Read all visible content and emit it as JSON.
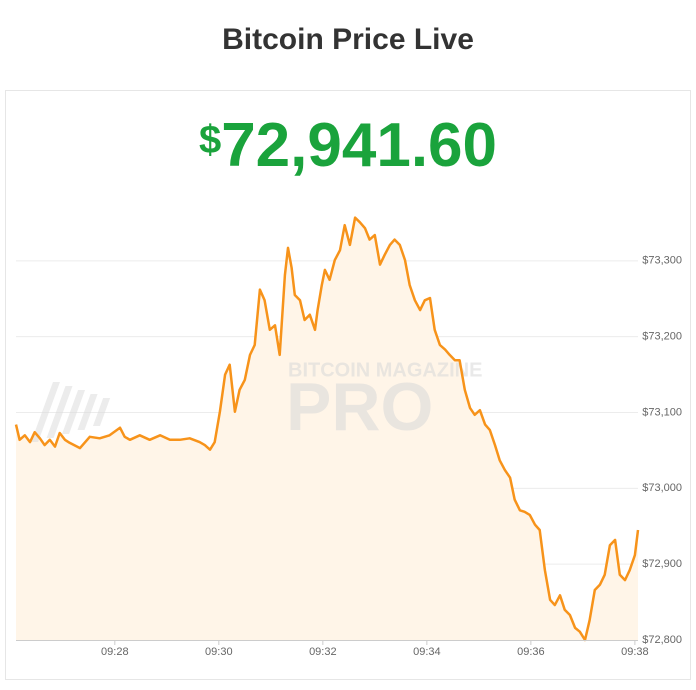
{
  "header": {
    "title": "Bitcoin Price Live"
  },
  "price": {
    "symbol": "$",
    "amount": "72,941.60"
  },
  "watermark": {
    "top": "BITCOIN MAGAZINE",
    "bottom": "PRO"
  },
  "chart_data": {
    "type": "line",
    "color": "#f7931a",
    "fill": "#fff5e8",
    "grid": true,
    "xlim": [
      566.1,
      578.06
    ],
    "ylim": [
      72800,
      73400
    ],
    "xticks": [
      {
        "value": 568,
        "label": "09:28"
      },
      {
        "value": 570,
        "label": "09:30"
      },
      {
        "value": 572,
        "label": "09:32"
      },
      {
        "value": 574,
        "label": "09:34"
      },
      {
        "value": 576,
        "label": "09:36"
      },
      {
        "value": 578,
        "label": "09:38"
      }
    ],
    "yticks": [
      {
        "value": 72800,
        "label": "$72,800"
      },
      {
        "value": 72900,
        "label": "$72,900"
      },
      {
        "value": 73000,
        "label": "$73,000"
      },
      {
        "value": 73100,
        "label": "$73,100"
      },
      {
        "value": 73200,
        "label": "$73,200"
      },
      {
        "value": 73300,
        "label": "$73,300"
      }
    ],
    "series": [
      {
        "name": "Price",
        "x": [
          566.1,
          566.17,
          566.27,
          566.37,
          566.46,
          566.56,
          566.65,
          566.75,
          566.85,
          566.94,
          567.04,
          567.13,
          567.33,
          567.52,
          567.71,
          567.9,
          568.1,
          568.19,
          568.29,
          568.48,
          568.67,
          568.87,
          569.06,
          569.25,
          569.44,
          569.63,
          569.73,
          569.83,
          569.92,
          570.02,
          570.12,
          570.21,
          570.31,
          570.4,
          570.5,
          570.6,
          570.69,
          570.79,
          570.88,
          570.98,
          571.08,
          571.17,
          571.27,
          571.33,
          571.4,
          571.46,
          571.56,
          571.65,
          571.75,
          571.85,
          571.9,
          571.98,
          572.04,
          572.13,
          572.23,
          572.33,
          572.42,
          572.52,
          572.62,
          572.71,
          572.81,
          572.9,
          573.0,
          573.1,
          573.19,
          573.29,
          573.38,
          573.48,
          573.58,
          573.67,
          573.77,
          573.87,
          573.96,
          574.06,
          574.15,
          574.25,
          574.35,
          574.44,
          574.54,
          574.63,
          574.73,
          574.83,
          574.92,
          575.02,
          575.12,
          575.21,
          575.31,
          575.4,
          575.5,
          575.6,
          575.69,
          575.79,
          575.88,
          575.98,
          576.08,
          576.17,
          576.27,
          576.37,
          576.46,
          576.56,
          576.65,
          576.75,
          576.85,
          576.94,
          577.04,
          577.13,
          577.23,
          577.33,
          577.42,
          577.52,
          577.62,
          577.71,
          577.81,
          577.9,
          578.0,
          578.06
        ],
        "values": [
          73084,
          73064,
          73070,
          73061,
          73074,
          73066,
          73057,
          73064,
          73055,
          73073,
          73064,
          73060,
          73053,
          73068,
          73066,
          73070,
          73080,
          73068,
          73064,
          73070,
          73064,
          73070,
          73064,
          73064,
          73066,
          73061,
          73057,
          73051,
          73061,
          73101,
          73150,
          73163,
          73101,
          73130,
          73143,
          73176,
          73189,
          73262,
          73248,
          73209,
          73215,
          73176,
          73281,
          73317,
          73291,
          73255,
          73248,
          73222,
          73229,
          73209,
          73235,
          73268,
          73288,
          73275,
          73301,
          73314,
          73347,
          73321,
          73357,
          73351,
          73343,
          73328,
          73334,
          73295,
          73308,
          73321,
          73328,
          73321,
          73301,
          73268,
          73248,
          73235,
          73248,
          73251,
          73209,
          73189,
          73183,
          73176,
          73169,
          73169,
          73130,
          73106,
          73097,
          73103,
          73084,
          73077,
          73057,
          73037,
          73024,
          73014,
          72985,
          72971,
          72969,
          72965,
          72952,
          72945,
          72892,
          72853,
          72846,
          72859,
          72840,
          72833,
          72816,
          72811,
          72800,
          72826,
          72866,
          72873,
          72886,
          72925,
          72932,
          72886,
          72879,
          72892,
          72912,
          72945
        ]
      }
    ]
  }
}
